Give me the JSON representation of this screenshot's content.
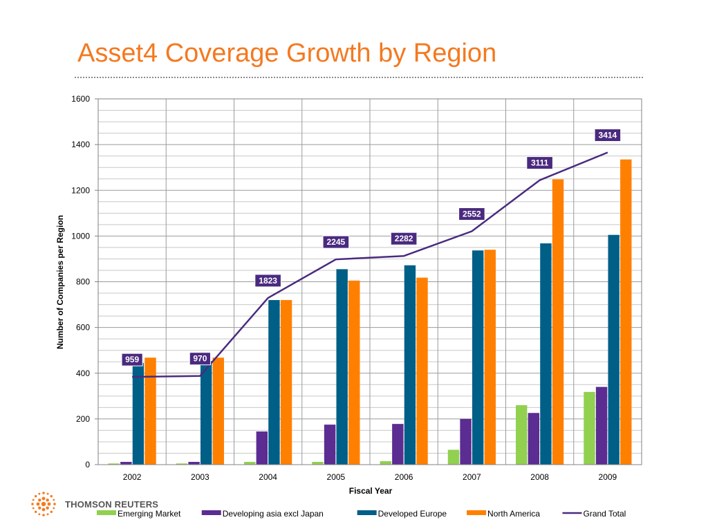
{
  "page": {
    "title": "Asset4 Coverage Growth by Region",
    "brand": "THOMSON REUTERS",
    "brand_icon": "thomson-reuters-dot-globe-icon",
    "accent_color": "#f47920"
  },
  "chart_data": {
    "type": "bar",
    "title": "Asset4 Coverage Growth by Region",
    "xlabel": "Fiscal Year",
    "ylabel": "Number of Companies per Region",
    "categories": [
      "2002",
      "2003",
      "2004",
      "2005",
      "2006",
      "2007",
      "2008",
      "2009"
    ],
    "ylim": [
      0,
      1600
    ],
    "yticks": [
      0,
      200,
      400,
      600,
      800,
      1000,
      1200,
      1400,
      1600
    ],
    "grid": true,
    "legend_position": "bottom",
    "series": [
      {
        "name": "Emerging Market",
        "color": "#92d050",
        "values": [
          5,
          5,
          12,
          12,
          15,
          65,
          260,
          318
        ]
      },
      {
        "name": "Developing asia excl Japan",
        "color": "#5b2c91",
        "values": [
          12,
          12,
          145,
          175,
          178,
          200,
          226,
          340
        ]
      },
      {
        "name": "Developed Europe",
        "color": "#005f87",
        "values": [
          445,
          453,
          720,
          855,
          872,
          937,
          968,
          1005
        ]
      },
      {
        "name": "North America",
        "color": "#ff8000",
        "values": [
          468,
          468,
          720,
          805,
          818,
          940,
          1248,
          1335
        ]
      }
    ],
    "line_series": {
      "name": "Grand Total",
      "color": "#4a2a7f",
      "values": [
        959,
        970,
        1823,
        2245,
        2282,
        2552,
        3111,
        3414
      ],
      "data_labels": [
        "959",
        "970",
        "1823",
        "2245",
        "2282",
        "2552",
        "3111",
        "3414"
      ]
    }
  }
}
